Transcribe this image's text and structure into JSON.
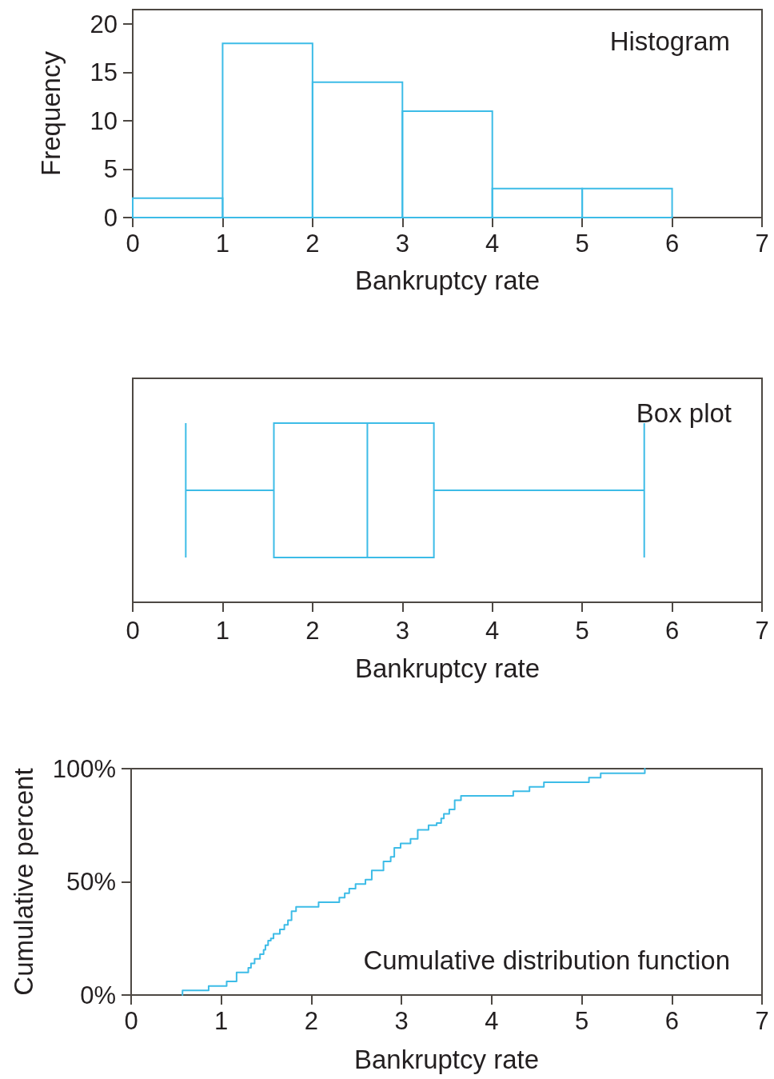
{
  "chart_data": [
    {
      "type": "histogram",
      "title": "Histogram",
      "xlabel": "Bankruptcy rate",
      "ylabel": "Frequency",
      "bins": [
        0,
        1,
        2,
        3,
        4,
        5,
        6
      ],
      "values": [
        2,
        18,
        14,
        11,
        3,
        3
      ],
      "color": "#3dbce7",
      "xlim": [
        0,
        7
      ],
      "xticks": [
        0,
        1,
        2,
        3,
        4,
        5,
        6,
        7
      ],
      "ylim": [
        0,
        21.5
      ],
      "yticks": [
        0,
        5,
        10,
        15,
        20
      ]
    },
    {
      "type": "box",
      "title": "Box plot",
      "xlabel": "Bankruptcy rate",
      "orientation": "horizontal",
      "categories": [
        null
      ],
      "boxes": [
        {
          "low": 0.59,
          "q1": 1.57,
          "median": 2.61,
          "q3": 3.35,
          "high": 5.69
        }
      ],
      "color": "#3dbce7",
      "xlim": [
        0,
        7
      ],
      "xticks": [
        0,
        1,
        2,
        3,
        4,
        5,
        6,
        7
      ],
      "tick_labels": "x"
    },
    {
      "type": "step",
      "title": "Cumulative distribution function",
      "xlabel": "Bankruptcy rate",
      "ylabel": "Cumulative percent",
      "x": [
        0.57,
        0.57,
        0.86,
        1.06,
        1.17,
        1.3,
        1.33,
        1.37,
        1.43,
        1.47,
        1.49,
        1.52,
        1.55,
        1.58,
        1.65,
        1.7,
        1.74,
        1.78,
        1.83,
        2.08,
        2.31,
        2.37,
        2.42,
        2.49,
        2.6,
        2.67,
        2.8,
        2.88,
        2.92,
        2.99,
        3.1,
        3.18,
        3.3,
        3.39,
        3.44,
        3.47,
        3.53,
        3.59,
        3.66,
        4.24,
        4.42,
        4.58,
        5.08,
        5.21,
        5.7
      ],
      "values": [
        0,
        2,
        4,
        6,
        10,
        12,
        14,
        16,
        18,
        20,
        22,
        24,
        25,
        27,
        29,
        31,
        33,
        37,
        39,
        41,
        43,
        45,
        47,
        49,
        51,
        55,
        59,
        61,
        65,
        67,
        69,
        73,
        75,
        76,
        78,
        80,
        82,
        86,
        88,
        90,
        92,
        94,
        96,
        98,
        100
      ],
      "color": "#3dbce7",
      "xlim": [
        0,
        7
      ],
      "xticks": [
        0,
        1,
        2,
        3,
        4,
        5,
        6,
        7
      ],
      "ylim": [
        0,
        100
      ],
      "yticks": [
        {
          "value": 0,
          "label": "0%"
        },
        {
          "value": 50,
          "label": "50%"
        },
        {
          "value": 100,
          "label": "100%"
        }
      ]
    }
  ]
}
